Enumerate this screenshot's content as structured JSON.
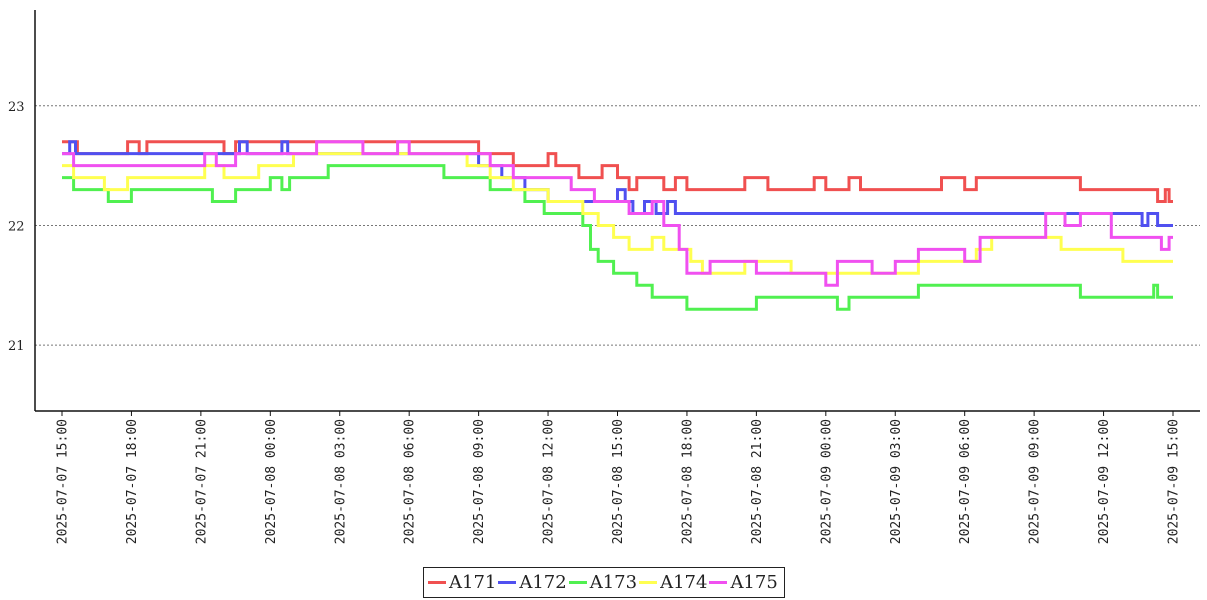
{
  "chart_data": {
    "type": "line",
    "title": "",
    "xlabel": "",
    "ylabel": "",
    "ylim": [
      20.45,
      23.8
    ],
    "yticks": [
      21,
      22,
      23
    ],
    "grid": "horizontal-dotted",
    "legend_position": "bottom-center",
    "x_tick_labels": [
      "2025-07-07 15:00",
      "2025-07-07 18:00",
      "2025-07-07 21:00",
      "2025-07-08 00:00",
      "2025-07-08 03:00",
      "2025-07-08 06:00",
      "2025-07-08 09:00",
      "2025-07-08 12:00",
      "2025-07-08 15:00",
      "2025-07-08 18:00",
      "2025-07-08 21:00",
      "2025-07-09 00:00",
      "2025-07-09 03:00",
      "2025-07-09 06:00",
      "2025-07-09 09:00",
      "2025-07-09 12:00",
      "2025-07-09 15:00"
    ],
    "series": [
      {
        "name": "A171",
        "color": "#f05050",
        "points": [
          [
            "2025-07-07 15:00",
            22.7
          ],
          [
            "2025-07-07 15:40",
            22.6
          ],
          [
            "2025-07-07 17:50",
            22.7
          ],
          [
            "2025-07-07 18:20",
            22.6
          ],
          [
            "2025-07-07 18:40",
            22.7
          ],
          [
            "2025-07-07 22:00",
            22.6
          ],
          [
            "2025-07-07 22:30",
            22.7
          ],
          [
            "2025-07-08 09:00",
            22.6
          ],
          [
            "2025-07-08 10:30",
            22.5
          ],
          [
            "2025-07-08 12:00",
            22.6
          ],
          [
            "2025-07-08 12:20",
            22.5
          ],
          [
            "2025-07-08 13:20",
            22.4
          ],
          [
            "2025-07-08 14:20",
            22.5
          ],
          [
            "2025-07-08 15:00",
            22.4
          ],
          [
            "2025-07-08 15:30",
            22.3
          ],
          [
            "2025-07-08 15:50",
            22.4
          ],
          [
            "2025-07-08 17:00",
            22.3
          ],
          [
            "2025-07-08 17:30",
            22.4
          ],
          [
            "2025-07-08 18:00",
            22.3
          ],
          [
            "2025-07-08 20:30",
            22.4
          ],
          [
            "2025-07-08 21:30",
            22.3
          ],
          [
            "2025-07-08 23:30",
            22.4
          ],
          [
            "2025-07-09 00:00",
            22.3
          ],
          [
            "2025-07-09 01:00",
            22.4
          ],
          [
            "2025-07-09 01:30",
            22.3
          ],
          [
            "2025-07-09 05:00",
            22.4
          ],
          [
            "2025-07-09 06:00",
            22.3
          ],
          [
            "2025-07-09 06:30",
            22.4
          ],
          [
            "2025-07-09 11:00",
            22.3
          ],
          [
            "2025-07-09 14:20",
            22.2
          ],
          [
            "2025-07-09 14:40",
            22.3
          ],
          [
            "2025-07-09 14:50",
            22.2
          ],
          [
            "2025-07-09 15:00",
            22.2
          ]
        ]
      },
      {
        "name": "A172",
        "color": "#5050f0",
        "points": [
          [
            "2025-07-07 15:00",
            22.6
          ],
          [
            "2025-07-07 15:20",
            22.7
          ],
          [
            "2025-07-07 15:35",
            22.6
          ],
          [
            "2025-07-07 21:00",
            22.6
          ],
          [
            "2025-07-07 22:40",
            22.7
          ],
          [
            "2025-07-07 23:00",
            22.6
          ],
          [
            "2025-07-08 00:30",
            22.7
          ],
          [
            "2025-07-08 00:45",
            22.6
          ],
          [
            "2025-07-08 09:00",
            22.5
          ],
          [
            "2025-07-08 10:00",
            22.4
          ],
          [
            "2025-07-08 11:00",
            22.3
          ],
          [
            "2025-07-08 12:00",
            22.2
          ],
          [
            "2025-07-08 15:00",
            22.3
          ],
          [
            "2025-07-08 15:20",
            22.2
          ],
          [
            "2025-07-08 15:40",
            22.1
          ],
          [
            "2025-07-08 16:10",
            22.2
          ],
          [
            "2025-07-08 16:40",
            22.1
          ],
          [
            "2025-07-08 17:10",
            22.2
          ],
          [
            "2025-07-08 17:30",
            22.1
          ],
          [
            "2025-07-09 12:00",
            22.1
          ],
          [
            "2025-07-09 13:40",
            22.0
          ],
          [
            "2025-07-09 13:55",
            22.1
          ],
          [
            "2025-07-09 14:20",
            22.0
          ],
          [
            "2025-07-09 15:00",
            22.0
          ]
        ]
      },
      {
        "name": "A173",
        "color": "#50f050",
        "points": [
          [
            "2025-07-07 15:00",
            22.4
          ],
          [
            "2025-07-07 15:30",
            22.3
          ],
          [
            "2025-07-07 17:00",
            22.2
          ],
          [
            "2025-07-07 18:00",
            22.3
          ],
          [
            "2025-07-07 21:30",
            22.2
          ],
          [
            "2025-07-07 22:30",
            22.3
          ],
          [
            "2025-07-08 00:00",
            22.4
          ],
          [
            "2025-07-08 00:30",
            22.3
          ],
          [
            "2025-07-08 00:50",
            22.4
          ],
          [
            "2025-07-08 02:30",
            22.5
          ],
          [
            "2025-07-08 06:30",
            22.5
          ],
          [
            "2025-07-08 07:30",
            22.4
          ],
          [
            "2025-07-08 09:30",
            22.3
          ],
          [
            "2025-07-08 11:00",
            22.2
          ],
          [
            "2025-07-08 11:50",
            22.1
          ],
          [
            "2025-07-08 12:20",
            22.1
          ],
          [
            "2025-07-08 13:30",
            22.0
          ],
          [
            "2025-07-08 13:50",
            21.8
          ],
          [
            "2025-07-08 14:10",
            21.7
          ],
          [
            "2025-07-08 14:50",
            21.6
          ],
          [
            "2025-07-08 15:50",
            21.5
          ],
          [
            "2025-07-08 16:30",
            21.4
          ],
          [
            "2025-07-08 17:00",
            21.4
          ],
          [
            "2025-07-08 18:00",
            21.3
          ],
          [
            "2025-07-08 21:00",
            21.4
          ],
          [
            "2025-07-09 00:30",
            21.3
          ],
          [
            "2025-07-09 01:00",
            21.4
          ],
          [
            "2025-07-09 04:00",
            21.5
          ],
          [
            "2025-07-09 07:00",
            21.5
          ],
          [
            "2025-07-09 11:00",
            21.4
          ],
          [
            "2025-07-09 14:10",
            21.5
          ],
          [
            "2025-07-09 14:20",
            21.4
          ],
          [
            "2025-07-09 15:00",
            21.4
          ]
        ]
      },
      {
        "name": "A174",
        "color": "#ffff50",
        "points": [
          [
            "2025-07-07 15:00",
            22.5
          ],
          [
            "2025-07-07 15:30",
            22.4
          ],
          [
            "2025-07-07 16:50",
            22.3
          ],
          [
            "2025-07-07 17:50",
            22.4
          ],
          [
            "2025-07-07 21:10",
            22.5
          ],
          [
            "2025-07-07 22:00",
            22.4
          ],
          [
            "2025-07-07 23:30",
            22.5
          ],
          [
            "2025-07-08 01:00",
            22.6
          ],
          [
            "2025-07-08 08:30",
            22.5
          ],
          [
            "2025-07-08 09:30",
            22.4
          ],
          [
            "2025-07-08 10:30",
            22.3
          ],
          [
            "2025-07-08 12:00",
            22.2
          ],
          [
            "2025-07-08 13:30",
            22.1
          ],
          [
            "2025-07-08 14:10",
            22.0
          ],
          [
            "2025-07-08 14:50",
            21.9
          ],
          [
            "2025-07-08 15:30",
            21.8
          ],
          [
            "2025-07-08 16:30",
            21.9
          ],
          [
            "2025-07-08 17:00",
            21.8
          ],
          [
            "2025-07-08 18:10",
            21.7
          ],
          [
            "2025-07-08 18:40",
            21.6
          ],
          [
            "2025-07-08 19:30",
            21.6
          ],
          [
            "2025-07-08 20:30",
            21.7
          ],
          [
            "2025-07-08 22:30",
            21.6
          ],
          [
            "2025-07-09 02:00",
            21.6
          ],
          [
            "2025-07-09 04:00",
            21.7
          ],
          [
            "2025-07-09 06:30",
            21.8
          ],
          [
            "2025-07-09 07:10",
            21.9
          ],
          [
            "2025-07-09 10:10",
            21.8
          ],
          [
            "2025-07-09 12:00",
            21.8
          ],
          [
            "2025-07-09 12:50",
            21.7
          ],
          [
            "2025-07-09 15:00",
            21.7
          ]
        ]
      },
      {
        "name": "A175",
        "color": "#f050f0",
        "points": [
          [
            "2025-07-07 15:00",
            22.6
          ],
          [
            "2025-07-07 15:30",
            22.5
          ],
          [
            "2025-07-07 18:00",
            22.5
          ],
          [
            "2025-07-07 21:10",
            22.6
          ],
          [
            "2025-07-07 21:40",
            22.5
          ],
          [
            "2025-07-07 22:30",
            22.6
          ],
          [
            "2025-07-08 00:00",
            22.6
          ],
          [
            "2025-07-08 02:00",
            22.7
          ],
          [
            "2025-07-08 04:00",
            22.6
          ],
          [
            "2025-07-08 05:30",
            22.7
          ],
          [
            "2025-07-08 06:00",
            22.6
          ],
          [
            "2025-07-08 09:30",
            22.5
          ],
          [
            "2025-07-08 10:30",
            22.4
          ],
          [
            "2025-07-08 12:00",
            22.4
          ],
          [
            "2025-07-08 13:00",
            22.3
          ],
          [
            "2025-07-08 14:00",
            22.2
          ],
          [
            "2025-07-08 15:30",
            22.1
          ],
          [
            "2025-07-08 16:30",
            22.2
          ],
          [
            "2025-07-08 17:00",
            22.0
          ],
          [
            "2025-07-08 17:40",
            21.8
          ],
          [
            "2025-07-08 18:00",
            21.6
          ],
          [
            "2025-07-08 19:00",
            21.7
          ],
          [
            "2025-07-08 21:00",
            21.6
          ],
          [
            "2025-07-09 00:00",
            21.5
          ],
          [
            "2025-07-09 00:30",
            21.7
          ],
          [
            "2025-07-09 02:00",
            21.6
          ],
          [
            "2025-07-09 03:00",
            21.7
          ],
          [
            "2025-07-09 04:00",
            21.8
          ],
          [
            "2025-07-09 06:00",
            21.7
          ],
          [
            "2025-07-09 06:40",
            21.9
          ],
          [
            "2025-07-09 09:00",
            21.9
          ],
          [
            "2025-07-09 09:30",
            22.1
          ],
          [
            "2025-07-09 10:20",
            22.0
          ],
          [
            "2025-07-09 11:00",
            22.1
          ],
          [
            "2025-07-09 12:20",
            21.9
          ],
          [
            "2025-07-09 14:30",
            21.8
          ],
          [
            "2025-07-09 14:50",
            21.9
          ],
          [
            "2025-07-09 15:00",
            21.9
          ]
        ]
      }
    ]
  }
}
